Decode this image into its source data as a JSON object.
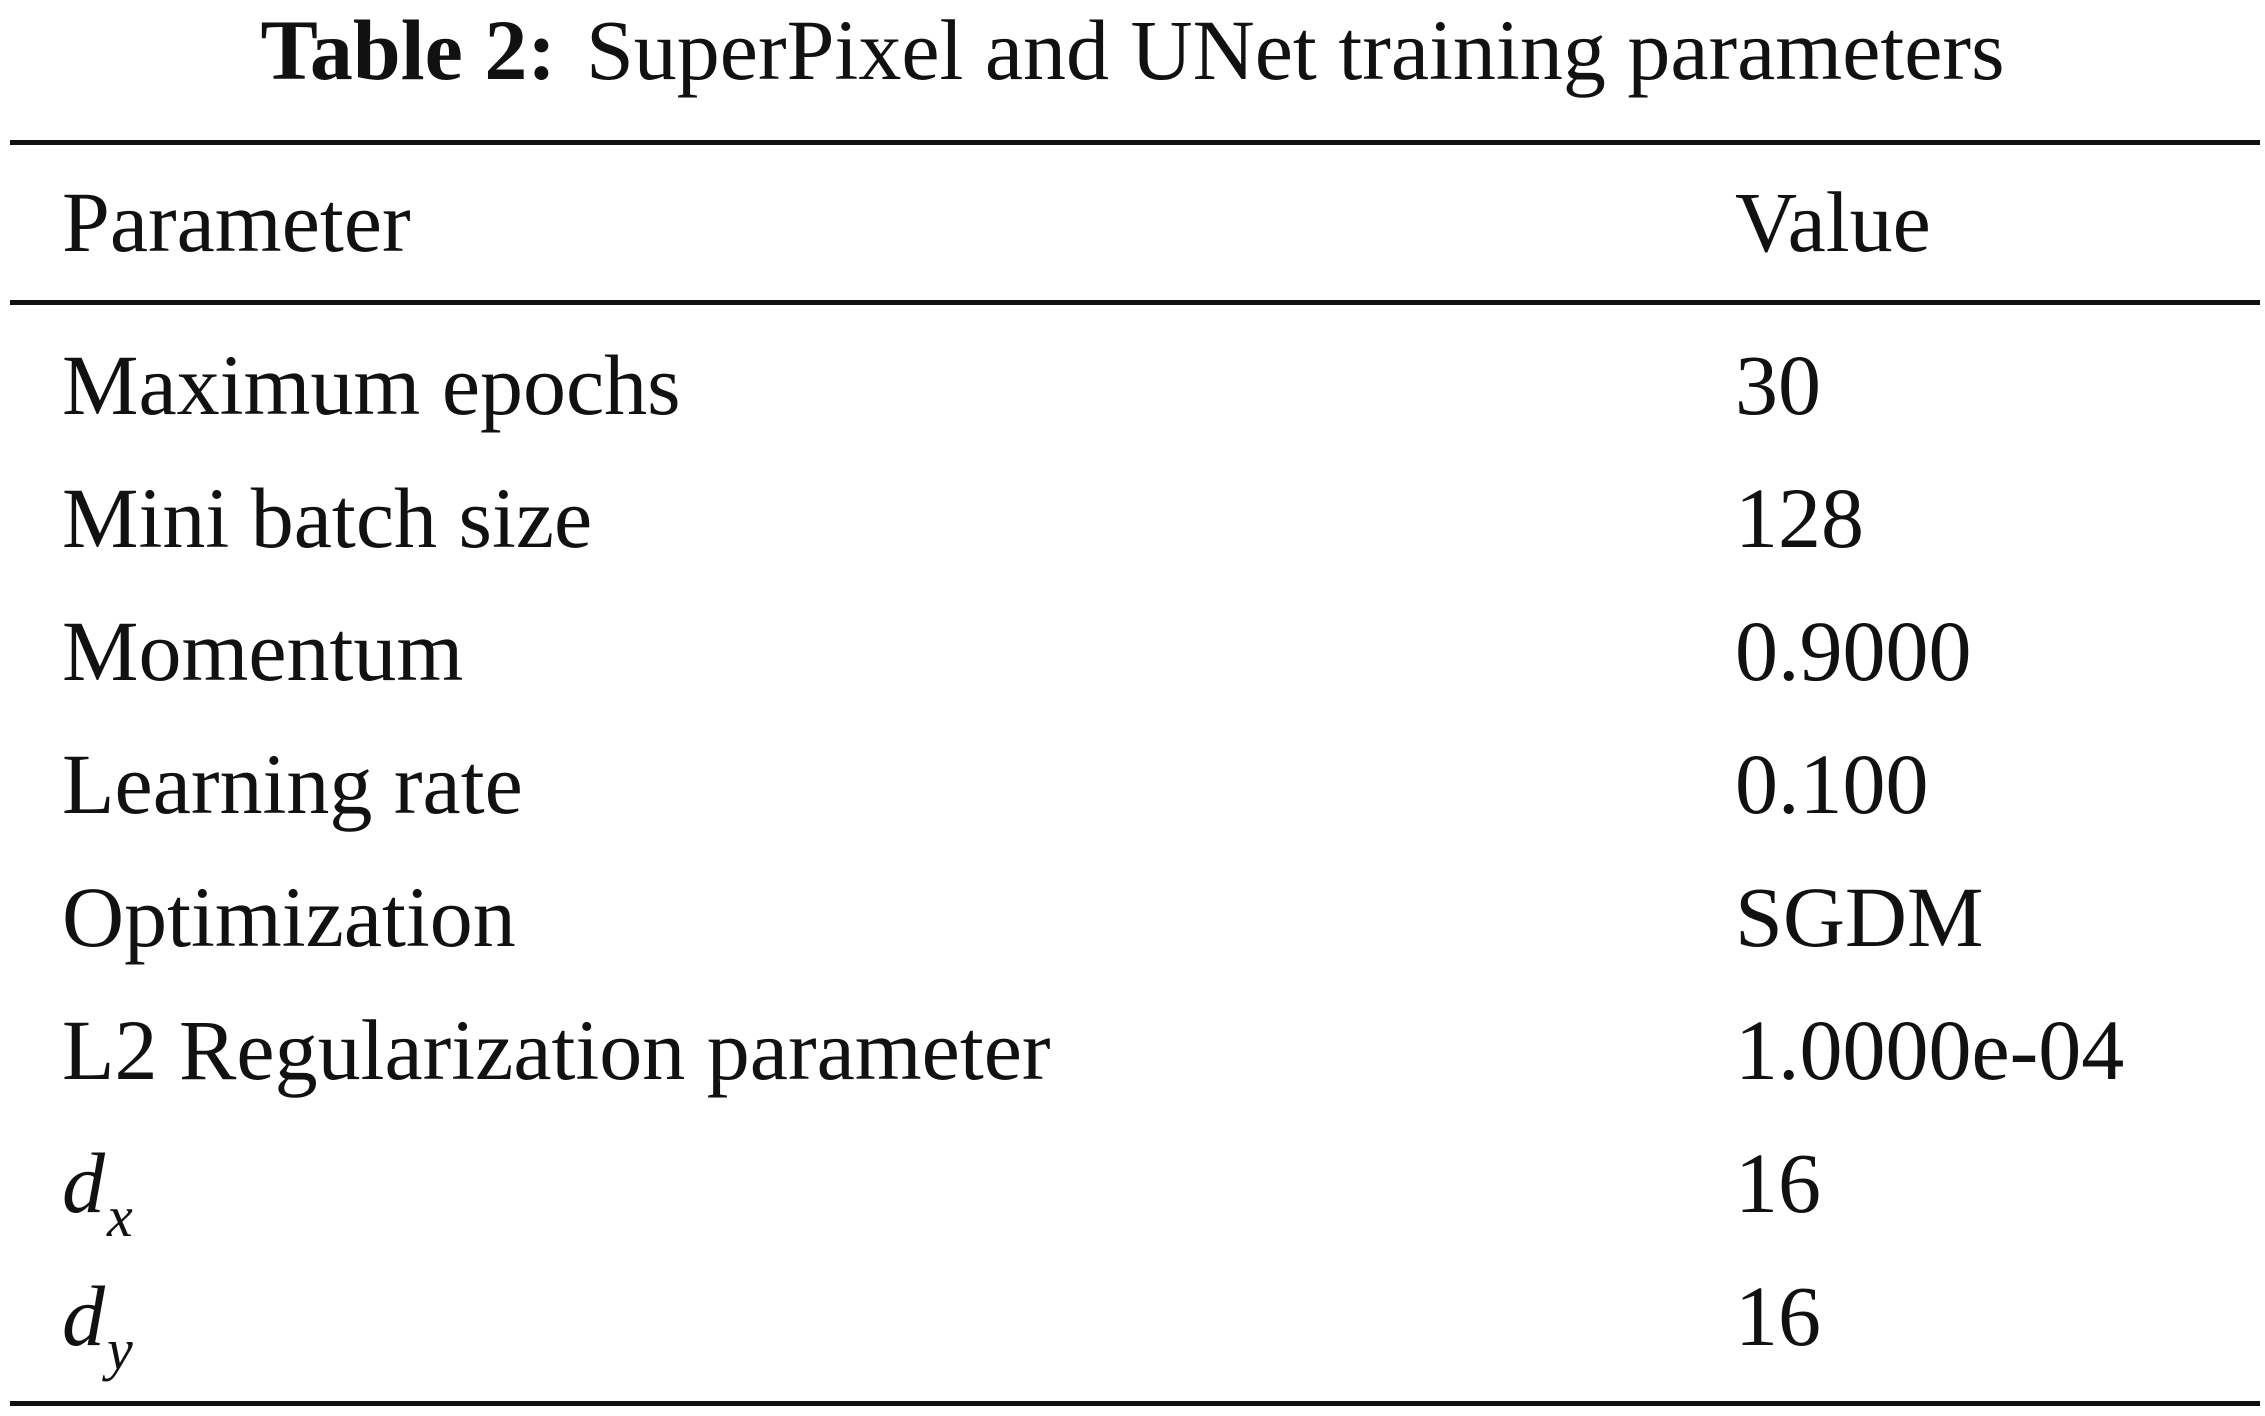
{
  "caption": {
    "label": "Table 2:",
    "text": "SuperPixel and UNet training parameters"
  },
  "table": {
    "headers": {
      "parameter": "Parameter",
      "value": "Value"
    },
    "rows": [
      {
        "parameter": "Maximum epochs",
        "value": "30"
      },
      {
        "parameter": "Mini batch size",
        "value": "128"
      },
      {
        "parameter": "Momentum",
        "value": "0.9000"
      },
      {
        "parameter": "Learning rate",
        "value": "0.100"
      },
      {
        "parameter": "Optimization",
        "value": "SGDM"
      },
      {
        "parameter": "L2 Regularization parameter",
        "value": "1.0000e-04"
      },
      {
        "parameter_symbol": "d",
        "parameter_subscript": "x",
        "value": "16"
      },
      {
        "parameter_symbol": "d",
        "parameter_subscript": "y",
        "value": "16"
      }
    ]
  }
}
